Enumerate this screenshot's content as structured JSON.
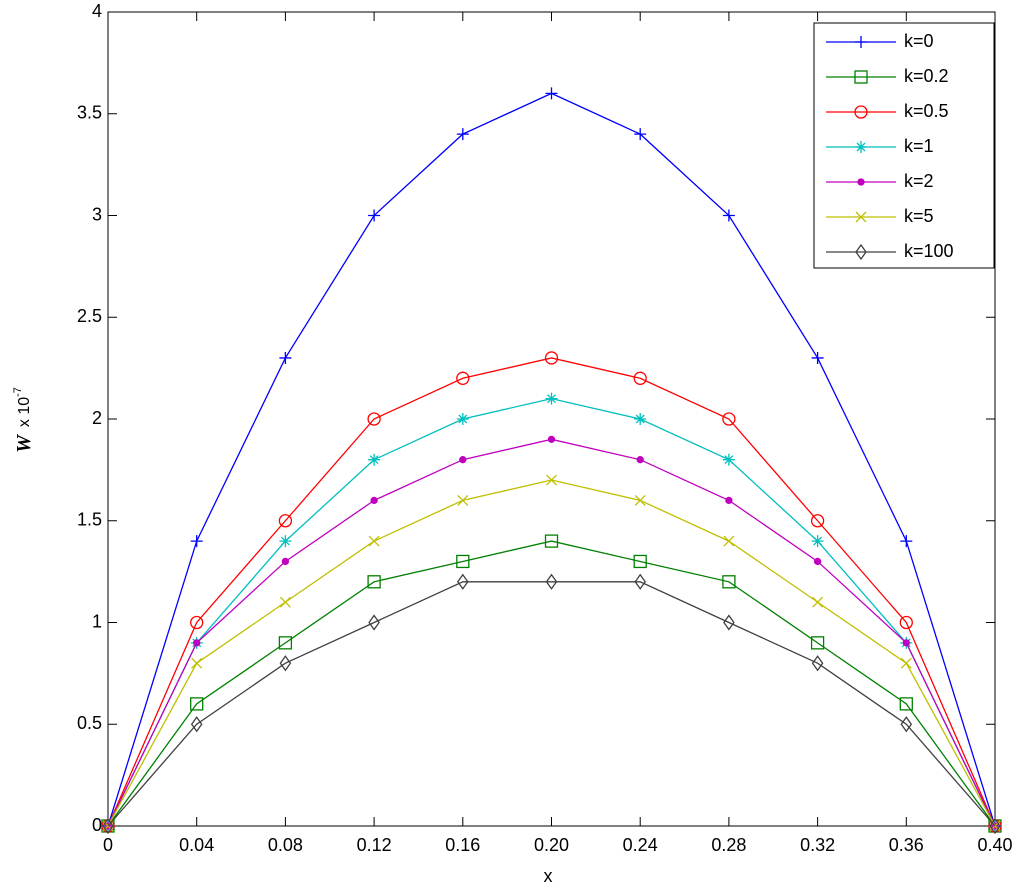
{
  "chart_data": {
    "type": "line",
    "x": [
      0,
      0.04,
      0.08,
      0.12,
      0.16,
      0.2,
      0.24,
      0.28,
      0.32,
      0.36,
      0.4
    ],
    "xlabel": "x",
    "ylabel_symbol": "W",
    "ylabel_unit": "x 10",
    "ylabel_exponent": "-7",
    "xlim": [
      0,
      0.4
    ],
    "xticks": [
      0,
      0.04,
      0.08,
      0.12,
      0.16,
      {
        "value": 0.2,
        "label": "0.20"
      },
      0.24,
      0.28,
      0.32,
      0.36,
      {
        "value": 0.4,
        "label": "0.40"
      }
    ],
    "ylim": [
      0,
      4
    ],
    "yticks": [
      0,
      0.5,
      1,
      1.5,
      2,
      2.5,
      3,
      3.5,
      4
    ],
    "grid": false,
    "legend": "upper-right",
    "series": [
      {
        "name": "k=0",
        "color": "#0000ff",
        "marker": "plus",
        "values": [
          0,
          1.4,
          2.3,
          3.0,
          3.4,
          3.6,
          3.4,
          3.0,
          2.3,
          1.4,
          0
        ]
      },
      {
        "name": "k=0.2",
        "color": "#008000",
        "marker": "square",
        "values": [
          0,
          0.6,
          0.9,
          1.2,
          1.3,
          1.4,
          1.3,
          1.2,
          0.9,
          0.6,
          0
        ]
      },
      {
        "name": "k=0.5",
        "color": "#ff0000",
        "marker": "circle",
        "values": [
          0,
          1.0,
          1.5,
          2.0,
          2.2,
          2.3,
          2.2,
          2.0,
          1.5,
          1.0,
          0
        ]
      },
      {
        "name": "k=1",
        "color": "#00bfbf",
        "marker": "star",
        "values": [
          0,
          0.9,
          1.4,
          1.8,
          2.0,
          2.1,
          2.0,
          1.8,
          1.4,
          0.9,
          0
        ]
      },
      {
        "name": "k=2",
        "color": "#bf00bf",
        "marker": "dot",
        "values": [
          0,
          0.9,
          1.3,
          1.6,
          1.8,
          1.9,
          1.8,
          1.6,
          1.3,
          0.9,
          0
        ]
      },
      {
        "name": "k=5",
        "color": "#bfbf00",
        "marker": "x",
        "values": [
          0,
          0.8,
          1.1,
          1.4,
          1.6,
          1.7,
          1.6,
          1.4,
          1.1,
          0.8,
          0
        ]
      },
      {
        "name": "k=100",
        "color": "#404040",
        "marker": "diamond",
        "values": [
          0,
          0.5,
          0.8,
          1.0,
          1.2,
          1.2,
          1.2,
          1.0,
          0.8,
          0.5,
          0
        ]
      }
    ]
  }
}
